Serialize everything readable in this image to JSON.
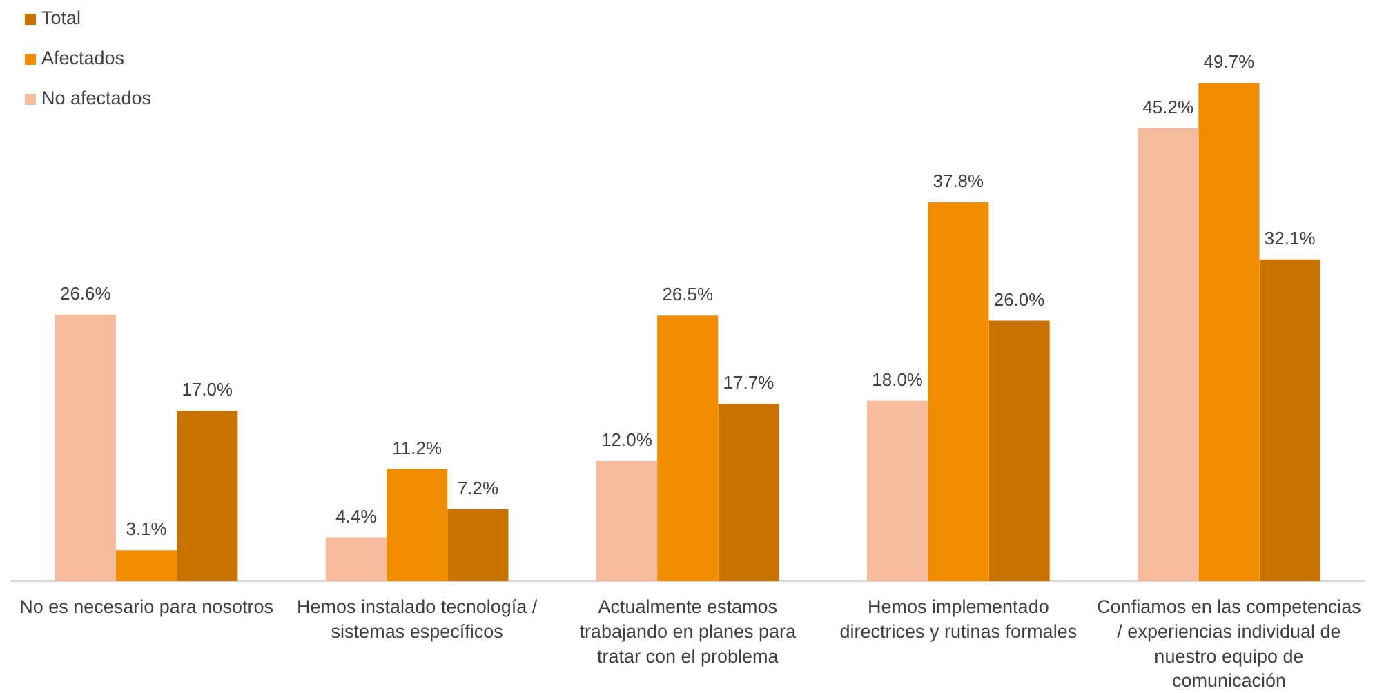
{
  "chart_data": {
    "type": "bar",
    "categories": [
      "No es necesario para nosotros",
      "Hemos instalado tecnología / sistemas específicos",
      "Actualmente estamos trabajando en planes para tratar con el problema",
      "Hemos implementado directrices y rutinas formales",
      "Confiamos en las competencias / experiencias individual de nuestro equipo de comunicación"
    ],
    "series": [
      {
        "name": "No afectados",
        "color": "#f5bb9c",
        "values": [
          26.6,
          4.4,
          12.0,
          18.0,
          45.2
        ],
        "value_labels": [
          "26.6%",
          "4.4%",
          "12.0%",
          "18.0%",
          "45.2%"
        ]
      },
      {
        "name": "Afectados",
        "color": "#f28c00",
        "values": [
          3.1,
          11.2,
          26.5,
          37.8,
          49.7
        ],
        "value_labels": [
          "3.1%",
          "11.2%",
          "26.5%",
          "37.8%",
          "49.7%"
        ]
      },
      {
        "name": "Total",
        "color": "#c87200",
        "values": [
          17.0,
          7.2,
          17.7,
          26.0,
          32.1
        ],
        "value_labels": [
          "17.0%",
          "7.2%",
          "17.7%",
          "26.0%",
          "32.1%"
        ]
      }
    ],
    "legend": "top left"
  }
}
